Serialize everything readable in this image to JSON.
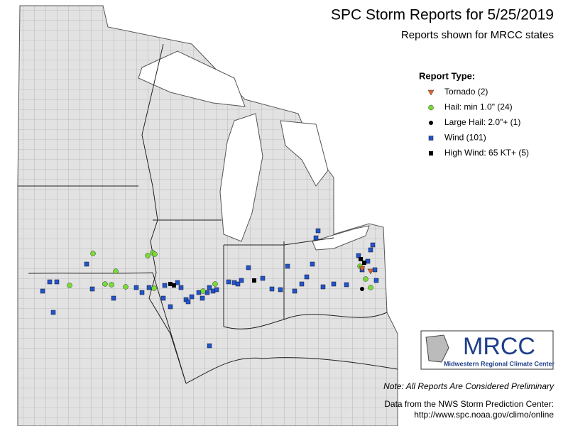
{
  "header": {
    "title": "SPC Storm Reports for 5/25/2019",
    "subtitle": "Reports shown for MRCC states"
  },
  "legend": {
    "title": "Report Type:",
    "items": [
      {
        "label": "Tornado (2)",
        "color": "#e0642a"
      },
      {
        "label": "Hail: min 1.0\" (24)",
        "color": "#77dd33"
      },
      {
        "label": "Large Hail: 2.0\"+ (1)",
        "color": "#000000"
      },
      {
        "label": "Wind (101)",
        "color": "#2255cc"
      },
      {
        "label": "High Wind: 65 KT+ (5)",
        "color": "#000000"
      }
    ]
  },
  "logo": {
    "name": "MRCC",
    "full_name": "Midwestern Regional Climate Center"
  },
  "notes": {
    "preliminary": "Note: All Reports Are Considered Preliminary",
    "source": "Data from the NWS Storm Prediction Center:",
    "url": "http://www.spc.noaa.gov/climo/online"
  }
}
